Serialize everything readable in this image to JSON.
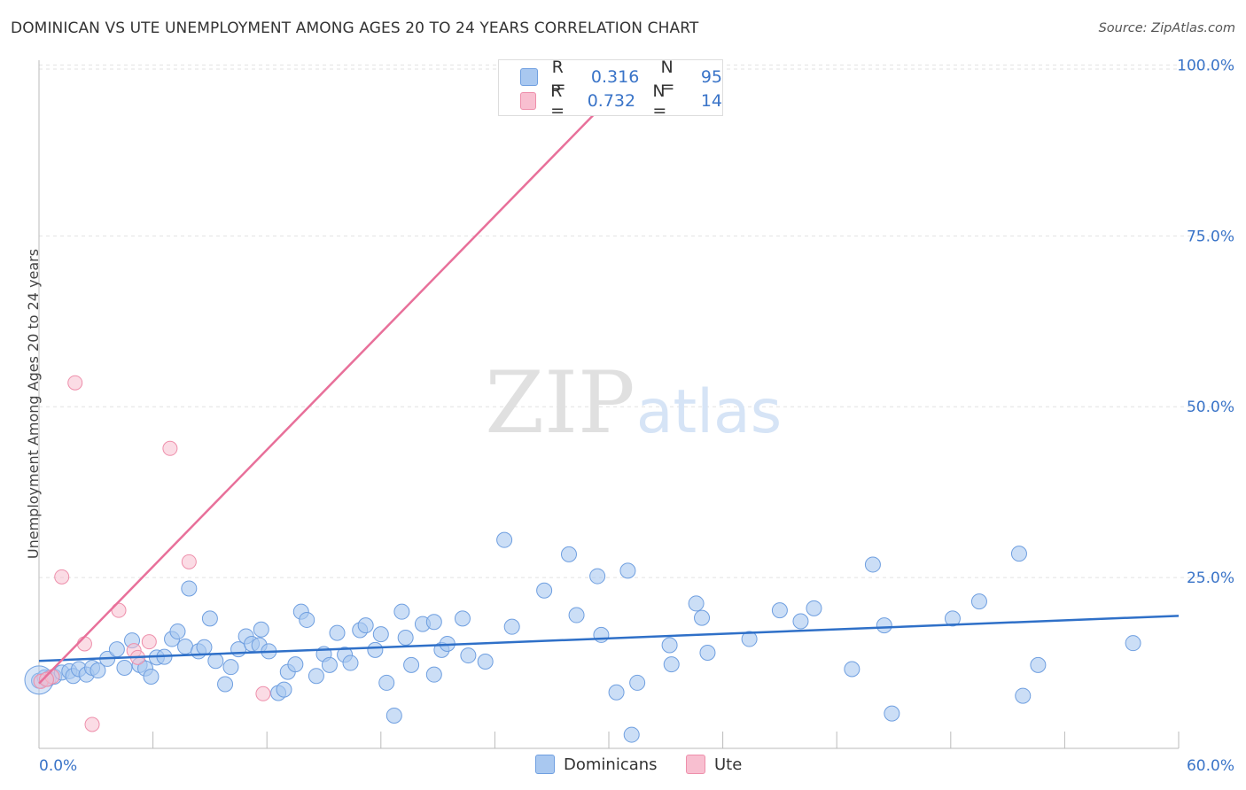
{
  "title": "DOMINICAN VS UTE UNEMPLOYMENT AMONG AGES 20 TO 24 YEARS CORRELATION CHART",
  "source": "Source: ZipAtlas.com",
  "watermark": {
    "zip": "ZIP",
    "atlas": "atlas"
  },
  "legend": {
    "rows": [
      {
        "r_label": "R =",
        "r_value": "0.316",
        "n_label": "N =",
        "n_value": "95"
      },
      {
        "r_label": "R =",
        "r_value": "0.732",
        "n_label": "N =",
        "n_value": "14"
      }
    ]
  },
  "bottom_legend": {
    "dominicans": "Dominicans",
    "ute": "Ute"
  },
  "colors": {
    "dominicans_fill": "#a9c8f0",
    "dominicans_stroke": "#6f9fe0",
    "dominicans_line": "#2f70c8",
    "ute_fill": "#f8bfd0",
    "ute_stroke": "#ee8fab",
    "ute_line": "#e8709a",
    "axis_label": "#3a74c8",
    "grid": "#e2e2e2"
  },
  "chart_data": {
    "type": "scatter",
    "title": "DOMINICAN VS UTE UNEMPLOYMENT AMONG AGES 20 TO 24 YEARS CORRELATION CHART",
    "xlabel": "",
    "ylabel": "Unemployment Among Ages 20 to 24 years",
    "xlim": [
      0,
      60
    ],
    "ylim": [
      0,
      102
    ],
    "x_tick_labels": [
      "0.0%",
      "60.0%"
    ],
    "y_ticks": [
      25,
      50,
      75,
      100
    ],
    "y_tick_labels": [
      "25.0%",
      "50.0%",
      "75.0%",
      "100.0%"
    ],
    "series": [
      {
        "name": "Dominicans",
        "R": 0.316,
        "N": 95,
        "trend": {
          "x": [
            0,
            60
          ],
          "y": [
            12.8,
            19.4
          ]
        },
        "points": [
          [
            0.0,
            9.9
          ],
          [
            0.3,
            10.4
          ],
          [
            0.5,
            10.2
          ],
          [
            0.8,
            10.5
          ],
          [
            1.2,
            11.1
          ],
          [
            1.6,
            11.3
          ],
          [
            1.8,
            10.6
          ],
          [
            2.1,
            11.6
          ],
          [
            2.5,
            10.8
          ],
          [
            2.8,
            11.8
          ],
          [
            3.1,
            11.4
          ],
          [
            3.6,
            13.1
          ],
          [
            4.1,
            14.5
          ],
          [
            4.5,
            11.8
          ],
          [
            4.9,
            15.8
          ],
          [
            5.3,
            12.2
          ],
          [
            5.6,
            11.7
          ],
          [
            5.9,
            10.5
          ],
          [
            6.2,
            13.3
          ],
          [
            6.6,
            13.4
          ],
          [
            7.0,
            16.0
          ],
          [
            7.3,
            17.1
          ],
          [
            7.7,
            14.9
          ],
          [
            7.9,
            23.4
          ],
          [
            8.4,
            14.2
          ],
          [
            8.7,
            14.8
          ],
          [
            9.0,
            19.0
          ],
          [
            9.3,
            12.8
          ],
          [
            9.8,
            9.4
          ],
          [
            10.1,
            11.9
          ],
          [
            10.5,
            14.5
          ],
          [
            10.9,
            16.4
          ],
          [
            11.2,
            15.3
          ],
          [
            11.6,
            15.1
          ],
          [
            11.7,
            17.4
          ],
          [
            12.1,
            14.2
          ],
          [
            12.6,
            8.1
          ],
          [
            12.9,
            8.6
          ],
          [
            13.1,
            11.2
          ],
          [
            13.5,
            12.3
          ],
          [
            13.8,
            20.0
          ],
          [
            14.1,
            18.8
          ],
          [
            14.6,
            10.6
          ],
          [
            15.0,
            13.8
          ],
          [
            15.3,
            12.2
          ],
          [
            15.7,
            16.9
          ],
          [
            16.1,
            13.7
          ],
          [
            16.4,
            12.5
          ],
          [
            16.9,
            17.3
          ],
          [
            17.2,
            18.0
          ],
          [
            17.7,
            14.4
          ],
          [
            18.0,
            16.7
          ],
          [
            18.3,
            9.6
          ],
          [
            18.7,
            4.8
          ],
          [
            19.1,
            20.0
          ],
          [
            19.3,
            16.2
          ],
          [
            19.6,
            12.2
          ],
          [
            20.2,
            18.2
          ],
          [
            20.8,
            18.5
          ],
          [
            20.8,
            10.8
          ],
          [
            21.2,
            14.4
          ],
          [
            21.5,
            15.3
          ],
          [
            22.3,
            19.0
          ],
          [
            22.6,
            13.6
          ],
          [
            23.5,
            12.7
          ],
          [
            24.5,
            30.5
          ],
          [
            24.9,
            17.8
          ],
          [
            26.6,
            23.1
          ],
          [
            27.9,
            28.4
          ],
          [
            28.3,
            19.5
          ],
          [
            29.4,
            25.2
          ],
          [
            29.6,
            16.6
          ],
          [
            30.4,
            8.2
          ],
          [
            31.0,
            26.0
          ],
          [
            31.2,
            2.0
          ],
          [
            31.5,
            9.6
          ],
          [
            33.2,
            15.1
          ],
          [
            33.3,
            12.3
          ],
          [
            34.6,
            21.2
          ],
          [
            34.9,
            19.1
          ],
          [
            35.2,
            14.0
          ],
          [
            37.4,
            16.0
          ],
          [
            39.0,
            20.2
          ],
          [
            40.1,
            18.6
          ],
          [
            40.8,
            20.5
          ],
          [
            42.8,
            11.6
          ],
          [
            43.9,
            26.9
          ],
          [
            44.5,
            18.0
          ],
          [
            44.9,
            5.1
          ],
          [
            48.1,
            19.0
          ],
          [
            49.5,
            21.5
          ],
          [
            51.6,
            28.5
          ],
          [
            51.8,
            7.7
          ],
          [
            52.6,
            12.2
          ],
          [
            57.6,
            15.4
          ]
        ]
      },
      {
        "name": "Ute",
        "R": 0.732,
        "N": 14,
        "trend": {
          "x": [
            0,
            30
          ],
          "y": [
            9.5,
            95
          ]
        },
        "points": [
          [
            0.1,
            9.8
          ],
          [
            0.7,
            10.5
          ],
          [
            1.2,
            25.1
          ],
          [
            1.9,
            53.5
          ],
          [
            2.4,
            15.3
          ],
          [
            2.8,
            3.5
          ],
          [
            4.2,
            20.2
          ],
          [
            5.0,
            14.3
          ],
          [
            5.2,
            13.3
          ],
          [
            5.8,
            15.6
          ],
          [
            6.9,
            43.9
          ],
          [
            7.9,
            27.3
          ],
          [
            11.8,
            8.0
          ],
          [
            0.4,
            10.1
          ]
        ]
      }
    ]
  }
}
